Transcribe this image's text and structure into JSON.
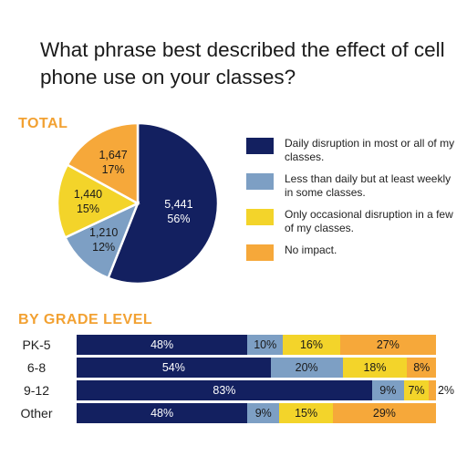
{
  "title": "What phrase best described the effect of cell phone use on your classes?",
  "total_label": "TOTAL",
  "grade_label": "BY GRADE LEVEL",
  "colors": {
    "daily": "#132060",
    "weekly": "#7d9fc4",
    "occasional": "#f3d42a",
    "none": "#f6a83a",
    "accent": "#f2a132"
  },
  "legend": [
    {
      "key": "daily",
      "text": "Daily disruption in most or all of my classes."
    },
    {
      "key": "weekly",
      "text": "Less than daily but at least weekly in some classes."
    },
    {
      "key": "occasional",
      "text": "Only occasional disruption in a few of my classes."
    },
    {
      "key": "none",
      "text": "No impact."
    }
  ],
  "chart_data": [
    {
      "type": "pie",
      "title": "TOTAL",
      "slices": [
        {
          "key": "daily",
          "count": "5,441",
          "percent": 56
        },
        {
          "key": "weekly",
          "count": "1,210",
          "percent": 12
        },
        {
          "key": "occasional",
          "count": "1,440",
          "percent": 15
        },
        {
          "key": "none",
          "count": "1,647",
          "percent": 17
        }
      ]
    },
    {
      "type": "bar",
      "title": "BY GRADE LEVEL",
      "stacked": true,
      "orientation": "horizontal",
      "categories": [
        "PK-5",
        "6-8",
        "9-12",
        "Other"
      ],
      "series": [
        {
          "key": "daily",
          "values": [
            48,
            54,
            83,
            48
          ]
        },
        {
          "key": "weekly",
          "values": [
            10,
            20,
            9,
            9
          ]
        },
        {
          "key": "occasional",
          "values": [
            16,
            18,
            7,
            15
          ]
        },
        {
          "key": "none",
          "values": [
            27,
            8,
            2,
            29
          ]
        }
      ]
    }
  ]
}
